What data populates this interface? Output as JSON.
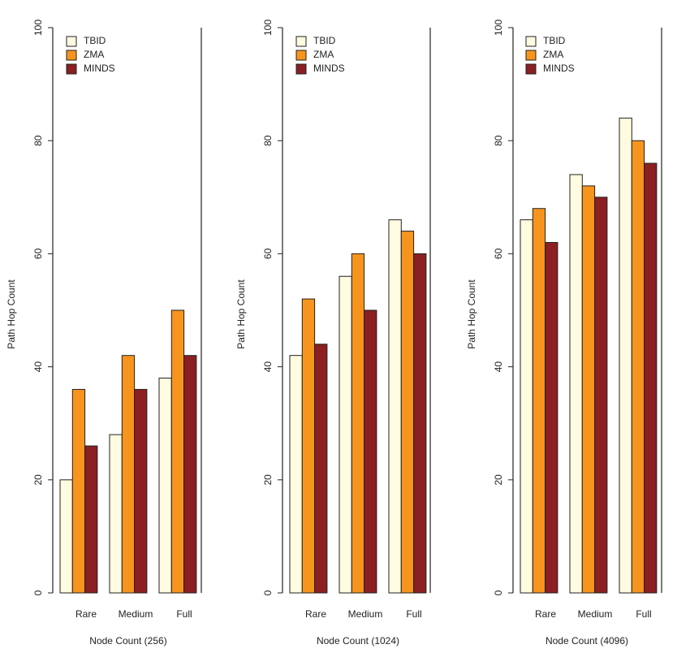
{
  "colors": {
    "TBID": "#fffbe0",
    "ZMA": "#f7941d",
    "MINDS": "#8b1f22",
    "bar_stroke": "#222222",
    "frame": "#222222"
  },
  "chart_data": [
    {
      "type": "bar",
      "categories": [
        "Rare",
        "Medium",
        "Full"
      ],
      "series": [
        {
          "name": "TBID",
          "values": [
            20,
            28,
            38
          ]
        },
        {
          "name": "ZMA",
          "values": [
            36,
            42,
            50
          ]
        },
        {
          "name": "MINDS",
          "values": [
            26,
            36,
            42
          ]
        }
      ],
      "xlabel": "Node Count (256)",
      "ylabel": "Path Hop Count",
      "ylim": [
        0,
        100
      ],
      "yticks": [
        "0",
        "20",
        "40",
        "60",
        "80",
        "100"
      ],
      "legend_position": "top-left",
      "grid": false
    },
    {
      "type": "bar",
      "categories": [
        "Rare",
        "Medium",
        "Full"
      ],
      "series": [
        {
          "name": "TBID",
          "values": [
            42,
            56,
            66
          ]
        },
        {
          "name": "ZMA",
          "values": [
            52,
            60,
            64
          ]
        },
        {
          "name": "MINDS",
          "values": [
            44,
            50,
            60
          ]
        }
      ],
      "xlabel": "Node Count (1024)",
      "ylabel": "Path Hop Count",
      "ylim": [
        0,
        100
      ],
      "yticks": [
        "0",
        "20",
        "40",
        "60",
        "80",
        "100"
      ],
      "legend_position": "top-left",
      "grid": false
    },
    {
      "type": "bar",
      "categories": [
        "Rare",
        "Medium",
        "Full"
      ],
      "series": [
        {
          "name": "TBID",
          "values": [
            66,
            74,
            84
          ]
        },
        {
          "name": "ZMA",
          "values": [
            68,
            72,
            80
          ]
        },
        {
          "name": "MINDS",
          "values": [
            62,
            70,
            76
          ]
        }
      ],
      "xlabel": "Node Count (4096)",
      "ylabel": "Path Hop Count",
      "ylim": [
        0,
        100
      ],
      "yticks": [
        "0",
        "20",
        "40",
        "60",
        "80",
        "100"
      ],
      "legend_position": "top-left",
      "grid": false
    }
  ]
}
